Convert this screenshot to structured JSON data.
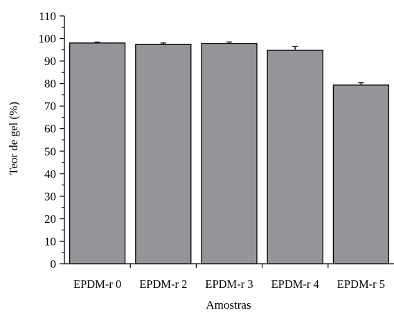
{
  "chart_data": {
    "type": "bar",
    "categories": [
      "EPDM-r 0",
      "EPDM-r 2",
      "EPDM-r 3",
      "EPDM-r 4",
      "EPDM-r 5"
    ],
    "values": [
      98.0,
      97.3,
      97.8,
      94.8,
      79.3
    ],
    "errors": [
      0.3,
      0.7,
      0.6,
      1.6,
      1.0
    ],
    "xlabel": "Amostras",
    "ylabel": "Teor de gel (%)",
    "ylim": [
      0,
      110
    ],
    "yticks": [
      0,
      10,
      20,
      30,
      40,
      50,
      60,
      70,
      80,
      90,
      100,
      110
    ],
    "ytick_labels": [
      "0",
      "10",
      "20",
      "30",
      "40",
      "50",
      "60",
      "70",
      "80",
      "90",
      "100",
      "110"
    ],
    "grid": false,
    "colors": {
      "bar_fill": "#939598",
      "bar_stroke": "#000000",
      "axis": "#000000"
    }
  }
}
